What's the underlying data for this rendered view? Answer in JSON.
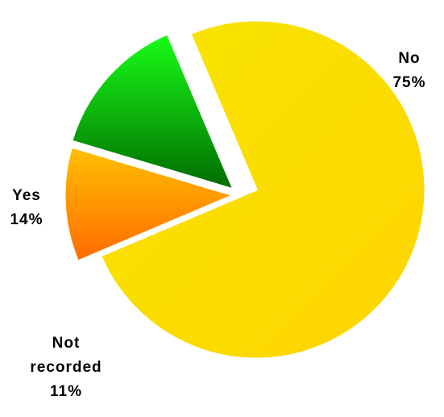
{
  "chart_data": {
    "type": "pie",
    "title": "",
    "slices": [
      {
        "label_lines": [
          "No"
        ],
        "value_text": "75%",
        "value": 75,
        "gradient": [
          "#f6e600",
          "#ffd400"
        ]
      },
      {
        "label_lines": [
          "Not",
          "recorded"
        ],
        "value_text": "11%",
        "value": 11,
        "gradient": [
          "#ffc000",
          "#ff6a00"
        ]
      },
      {
        "label_lines": [
          "Yes"
        ],
        "value_text": "14%",
        "value": 14,
        "gradient": [
          "#18ff18",
          "#006a00"
        ]
      }
    ],
    "exploded_slices": [
      "Not recorded",
      "Yes"
    ],
    "legend": "none",
    "labels_outside": true
  }
}
